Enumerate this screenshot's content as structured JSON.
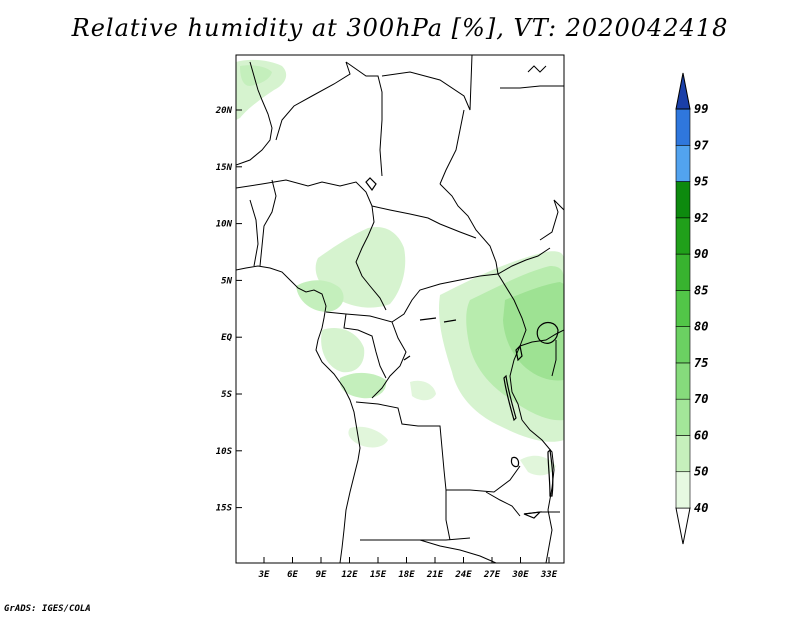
{
  "title": "Relative humidity at 300hPa [%], VT: 2020042418",
  "credit": "GrADS: IGES/COLA",
  "map": {
    "lat_ticks": [
      "20N",
      "15N",
      "10N",
      "5N",
      "EQ",
      "5S",
      "10S",
      "15S"
    ],
    "lon_ticks": [
      "3E",
      "6E",
      "9E",
      "12E",
      "15E",
      "18E",
      "21E",
      "24E",
      "27E",
      "30E",
      "33E"
    ]
  },
  "colorbar": {
    "levels": [
      "40",
      "50",
      "60",
      "70",
      "75",
      "80",
      "85",
      "90",
      "92",
      "95",
      "97",
      "99"
    ],
    "colors": [
      "#e6f9e1",
      "#c6f0bc",
      "#a3e699",
      "#86db7c",
      "#6bd162",
      "#52c648",
      "#38b32f",
      "#20a01a",
      "#0d8a0e",
      "#52a3ef",
      "#2f77dd",
      "#1e4fc0",
      "#1a3fa8"
    ]
  }
}
